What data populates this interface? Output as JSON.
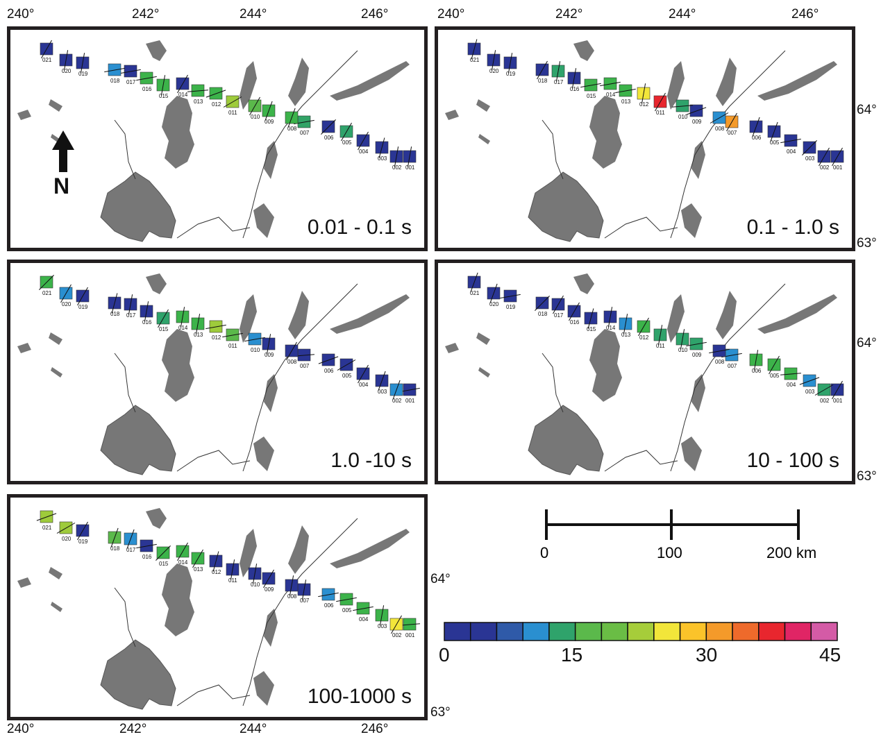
{
  "lon_labels_top": [
    "240°",
    "242°",
    "244°",
    "246°"
  ],
  "lon_labels_bottom": [
    "240°",
    "242°",
    "244°",
    "246°"
  ],
  "lat_labels": {
    "upper": "64°",
    "lower": "63°"
  },
  "north_label": "N",
  "panels": [
    {
      "label": "0.01 - 0.1 s",
      "colors": [
        "#2a3594",
        "#2a3594",
        "#2a3594",
        "#2a3594",
        "#2fa36b",
        "#2a3594",
        "#31a366",
        "#3cb34a",
        "#3cb34a",
        "#5bb94b",
        "#9ecb3b",
        "#3cb34a",
        "#3cb34a",
        "#2a3594",
        "#3cb34a",
        "#3cb34a",
        "#2a3594",
        "#2a8fd0",
        "#2a3594",
        "#2a3594",
        "#2a3594"
      ]
    },
    {
      "label": "0.1 - 1.0 s",
      "colors": [
        "#2a3594",
        "#2a3594",
        "#2a3594",
        "#2a3594",
        "#2a3594",
        "#2a3594",
        "#f49a2a",
        "#2a8fd0",
        "#2a3594",
        "#2fa36b",
        "#e8262e",
        "#f2e63a",
        "#3cb34a",
        "#3cb34a",
        "#3cb34a",
        "#2a3594",
        "#2fa36b",
        "#2a3594",
        "#2a3594",
        "#2a3594",
        "#2a3594"
      ]
    },
    {
      "label": "1.0 -10 s",
      "colors": [
        "#2a3594",
        "#2a8fd0",
        "#2a3594",
        "#2a3594",
        "#2a3594",
        "#2a3594",
        "#2a3594",
        "#2a3594",
        "#2a3594",
        "#2a8fd0",
        "#5bb94b",
        "#9ecb3b",
        "#3cb34a",
        "#3cb34a",
        "#2fa36b",
        "#2a3594",
        "#2a3594",
        "#2a3594",
        "#2a3594",
        "#2a8fd0",
        "#3cb34a"
      ]
    },
    {
      "label": "10 - 100 s",
      "colors": [
        "#2a3594",
        "#2fa36b",
        "#2a8fd0",
        "#3cb34a",
        "#3cb34a",
        "#3cb34a",
        "#2a8fd0",
        "#2a3594",
        "#2fa36b",
        "#2fa36b",
        "#2fa36b",
        "#3cb34a",
        "#2a8fd0",
        "#2a3594",
        "#2a3594",
        "#2a3594",
        "#2a3594",
        "#2a3594",
        "#2a3594",
        "#2a3594",
        "#2a3594"
      ]
    },
    {
      "label": "100-1000 s",
      "colors": [
        "#3cb34a",
        "#f2e63a",
        "#3cb34a",
        "#3cb34a",
        "#3cb34a",
        "#2a8fd0",
        "#2a3594",
        "#2a3594",
        "#2a3594",
        "#2a3594",
        "#2a3594",
        "#2a3594",
        "#3cb34a",
        "#3cb34a",
        "#3cb34a",
        "#2a3594",
        "#2a8fd0",
        "#5bb94b",
        "#2a3594",
        "#9ecb3b",
        "#9ecb3b"
      ]
    }
  ],
  "station_ids": [
    "001",
    "002",
    "003",
    "004",
    "005",
    "006",
    "007",
    "008",
    "009",
    "010",
    "011",
    "012",
    "013",
    "014",
    "015",
    "016",
    "017",
    "018",
    "019",
    "020",
    "021"
  ],
  "scale_bar": {
    "labels": [
      "0",
      "100",
      "200 km"
    ]
  },
  "colorbar": {
    "colors": [
      "#2a3594",
      "#2a3594",
      "#2f5aa8",
      "#2a8fd0",
      "#2fa36b",
      "#5bb94b",
      "#6abd45",
      "#a6cd3a",
      "#f2e63a",
      "#fbc32a",
      "#f49a2a",
      "#ee6a2b",
      "#e8262e",
      "#e02565",
      "#d45ba6"
    ],
    "labels": [
      "0",
      "15",
      "30",
      "45"
    ]
  }
}
